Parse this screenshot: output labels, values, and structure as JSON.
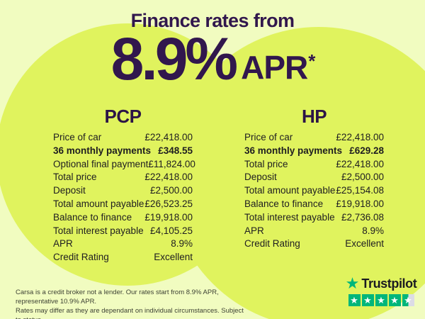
{
  "header": {
    "title": "Finance rates from",
    "rate": "8.9%",
    "apr_label": "APR",
    "asterisk": "*"
  },
  "tables": [
    {
      "id": "pcp",
      "title": "PCP",
      "rows": [
        {
          "label": "Price of car",
          "value": "£22,418.00"
        },
        {
          "label": "36 monthly payments",
          "value": "£348.55",
          "bold": true
        },
        {
          "label": "Optional final payment",
          "value": "£11,824.00"
        },
        {
          "label": "Total price",
          "value": "£22,418.00"
        },
        {
          "label": "Deposit",
          "value": "£2,500.00"
        },
        {
          "label": "Total amount payable",
          "value": "£26,523.25"
        },
        {
          "label": "Balance to finance",
          "value": "£19,918.00"
        },
        {
          "label": "Total interest payable",
          "value": "£4,105.25"
        },
        {
          "label": "APR",
          "value": "8.9%"
        },
        {
          "label": "Credit Rating",
          "value": "Excellent"
        }
      ]
    },
    {
      "id": "hp",
      "title": "HP",
      "rows": [
        {
          "label": "Price of car",
          "value": "£22,418.00"
        },
        {
          "label": "36 monthly payments",
          "value": "£629.28",
          "bold": true
        },
        {
          "label": "Total price",
          "value": "£22,418.00"
        },
        {
          "label": "Deposit",
          "value": "£2,500.00"
        },
        {
          "label": "Total amount payable",
          "value": "£25,154.08"
        },
        {
          "label": "Balance to finance",
          "value": "£19,918.00"
        },
        {
          "label": "Total interest payable",
          "value": "£2,736.08"
        },
        {
          "label": "APR",
          "value": "8.9%"
        },
        {
          "label": "Credit Rating",
          "value": "Excellent"
        }
      ]
    }
  ],
  "disclaimer": {
    "line1": "Carsa is a credit broker not a lender. Our rates start from 8.9% APR, representative 10.9% APR.",
    "line2": "Rates may differ as they are dependant on individual circumstances. Subject to status."
  },
  "trustpilot": {
    "name": "Trustpilot",
    "rating": 4.5,
    "star_count": 5
  },
  "colors": {
    "background": "#f1fcc0",
    "circle": "#e0f35e",
    "heading_purple": "#31174d",
    "body_text": "#1e1d20",
    "trustpilot_green": "#00b67a",
    "star_empty_grey": "#dcdce6"
  }
}
